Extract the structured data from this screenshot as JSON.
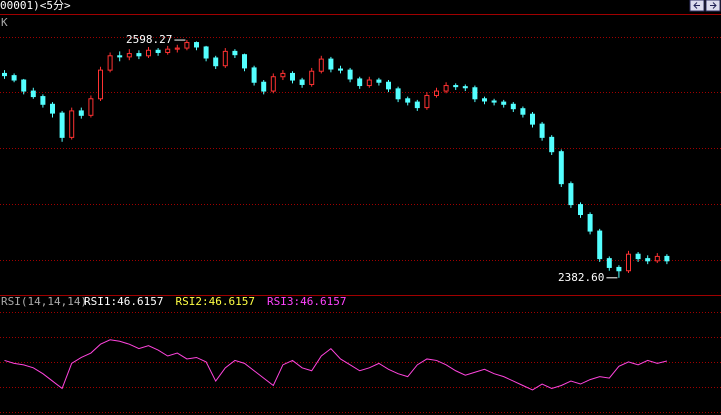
{
  "chart_data": {
    "type": "candlestick",
    "header": "00001)<5分>",
    "panel_label": "K",
    "up_color": "#ff3232",
    "down_color": "#54ffff",
    "ylim": [
      2367,
      2621
    ],
    "high_label": "2598.27",
    "low_label": "2382.60",
    "ohlc": [
      [
        2568,
        2571,
        2563,
        2566
      ],
      [
        2566,
        2568,
        2560,
        2562
      ],
      [
        2562,
        2563,
        2549,
        2552
      ],
      [
        2552,
        2555,
        2545,
        2547
      ],
      [
        2547,
        2549,
        2537,
        2540
      ],
      [
        2540,
        2542,
        2528,
        2532
      ],
      [
        2532,
        2534,
        2506,
        2510
      ],
      [
        2510,
        2537,
        2508,
        2534
      ],
      [
        2534,
        2537,
        2527,
        2530
      ],
      [
        2530,
        2548,
        2528,
        2545
      ],
      [
        2545,
        2574,
        2543,
        2571
      ],
      [
        2571,
        2587,
        2569,
        2584
      ],
      [
        2584,
        2588,
        2579,
        2583
      ],
      [
        2583,
        2590,
        2580,
        2586
      ],
      [
        2586,
        2589,
        2581,
        2584
      ],
      [
        2584,
        2592,
        2582,
        2589
      ],
      [
        2589,
        2591,
        2584,
        2587
      ],
      [
        2587,
        2593,
        2585,
        2590
      ],
      [
        2590,
        2594,
        2587,
        2591
      ],
      [
        2591,
        2598.27,
        2589,
        2596
      ],
      [
        2596,
        2597,
        2589,
        2592
      ],
      [
        2592,
        2593,
        2579,
        2582
      ],
      [
        2582,
        2584,
        2572,
        2575
      ],
      [
        2575,
        2591,
        2573,
        2588
      ],
      [
        2588,
        2590,
        2582,
        2585
      ],
      [
        2585,
        2586,
        2570,
        2573
      ],
      [
        2573,
        2575,
        2557,
        2560
      ],
      [
        2560,
        2562,
        2549,
        2552
      ],
      [
        2552,
        2568,
        2550,
        2565
      ],
      [
        2565,
        2571,
        2562,
        2568
      ],
      [
        2568,
        2570,
        2559,
        2562
      ],
      [
        2562,
        2564,
        2555,
        2558
      ],
      [
        2558,
        2573,
        2556,
        2570
      ],
      [
        2570,
        2584,
        2568,
        2581
      ],
      [
        2581,
        2583,
        2569,
        2572
      ],
      [
        2572,
        2575,
        2568,
        2571
      ],
      [
        2571,
        2573,
        2560,
        2563
      ],
      [
        2563,
        2565,
        2554,
        2557
      ],
      [
        2557,
        2565,
        2555,
        2562
      ],
      [
        2562,
        2564,
        2557,
        2560
      ],
      [
        2560,
        2562,
        2551,
        2554
      ],
      [
        2554,
        2556,
        2542,
        2545
      ],
      [
        2545,
        2547,
        2539,
        2542
      ],
      [
        2542,
        2544,
        2534,
        2537
      ],
      [
        2537,
        2551,
        2535,
        2548
      ],
      [
        2548,
        2555,
        2546,
        2552
      ],
      [
        2552,
        2560,
        2550,
        2557
      ],
      [
        2557,
        2559,
        2553,
        2556
      ],
      [
        2556,
        2558,
        2552,
        2555
      ],
      [
        2555,
        2557,
        2542,
        2545
      ],
      [
        2545,
        2547,
        2540,
        2543
      ],
      [
        2543,
        2545,
        2539,
        2542
      ],
      [
        2542,
        2544,
        2537,
        2540
      ],
      [
        2540,
        2542,
        2533,
        2536
      ],
      [
        2536,
        2538,
        2528,
        2531
      ],
      [
        2531,
        2533,
        2519,
        2522
      ],
      [
        2522,
        2524,
        2507,
        2510
      ],
      [
        2510,
        2512,
        2494,
        2497
      ],
      [
        2497,
        2499,
        2465,
        2468
      ],
      [
        2468,
        2470,
        2446,
        2449
      ],
      [
        2449,
        2451,
        2437,
        2440
      ],
      [
        2440,
        2442,
        2422,
        2425
      ],
      [
        2425,
        2427,
        2397,
        2400
      ],
      [
        2400,
        2402,
        2389,
        2392
      ],
      [
        2392,
        2394,
        2382.6,
        2389
      ],
      [
        2389,
        2407,
        2387,
        2404
      ],
      [
        2404,
        2406,
        2397,
        2400
      ],
      [
        2400,
        2403,
        2395,
        2398
      ],
      [
        2398,
        2405,
        2396,
        2402
      ],
      [
        2402,
        2404,
        2395,
        2398
      ]
    ],
    "rsi": {
      "title": "RSI(14,14,14)",
      "ylim": [
        10,
        90
      ],
      "color": "#ff44dd",
      "legend": [
        {
          "text": "RSI1:46.6157",
          "color": "#ffffff"
        },
        {
          "text": "RSI2:46.6157",
          "color": "#ffff44"
        },
        {
          "text": "RSI3:46.6157",
          "color": "#ff44ff"
        }
      ],
      "values": [
        47,
        45,
        44,
        42,
        38,
        33,
        28,
        45,
        49,
        52,
        58,
        61,
        60,
        58,
        55,
        57,
        54,
        50,
        52,
        48,
        49,
        46,
        33,
        42,
        47,
        45,
        40,
        35,
        30,
        44,
        47,
        42,
        40,
        50,
        55,
        48,
        44,
        40,
        42,
        45,
        41,
        38,
        36,
        44,
        48,
        47,
        44,
        40,
        37,
        39,
        41,
        38,
        36,
        33,
        30,
        27,
        31,
        28,
        30,
        33,
        31,
        34,
        36,
        35,
        43,
        46,
        44,
        47,
        45,
        46.6157
      ]
    }
  }
}
